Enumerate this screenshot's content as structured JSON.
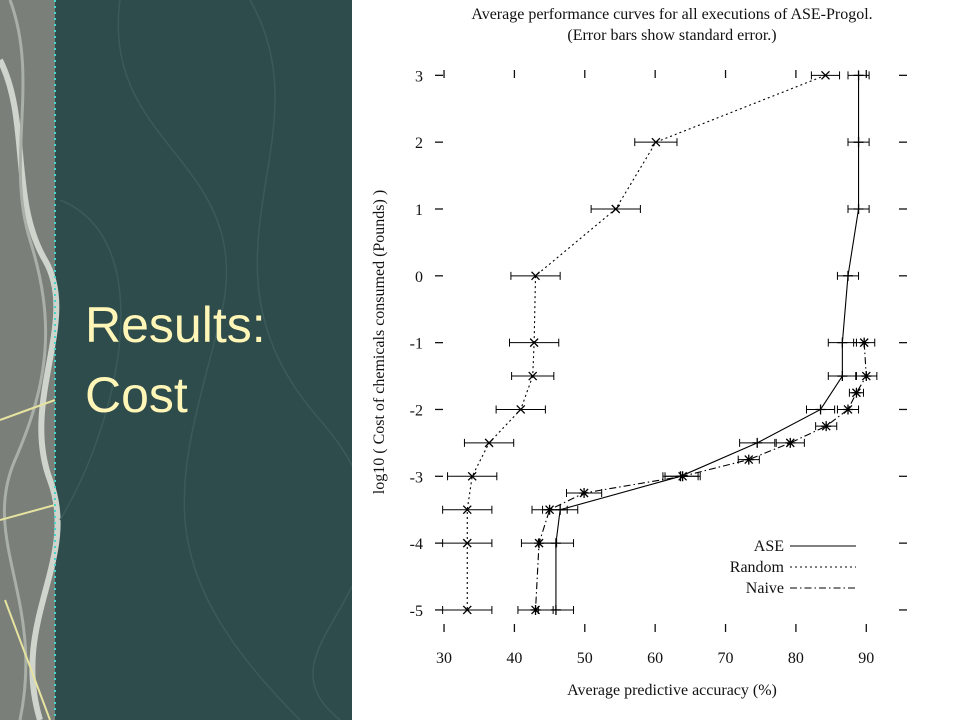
{
  "slide": {
    "title_lines": [
      "Results:",
      "Cost"
    ]
  },
  "chart_data": {
    "type": "line",
    "title": "Average performance curves for all executions of ASE-Progol.",
    "subtitle": "(Error bars show standard error.)",
    "x_label": "Average predictive accuracy (%)",
    "y_label": "log10 ( Cost of chemicals consumed (Pounds) )",
    "xlim": [
      29,
      95.5
    ],
    "ylim": [
      -5.3,
      3.05
    ],
    "xticks": [
      30,
      40,
      50,
      60,
      70,
      80,
      90
    ],
    "yticks": [
      3,
      2,
      1,
      0,
      -1,
      -2,
      -3,
      -4,
      -5
    ],
    "legend": "lower right",
    "series": [
      {
        "name": "ASE",
        "color": "#000000",
        "style": "solid",
        "marker": "plus",
        "x": [
          88.9,
          88.9,
          88.9,
          87.4,
          86.6,
          86.6,
          83.5,
          74.5,
          63.6,
          46.5,
          45.9,
          45.9
        ],
        "y": [
          3,
          2,
          1,
          0,
          -1,
          -1.5,
          -2,
          -2.5,
          -3,
          -3.5,
          -4,
          -5
        ],
        "errors": [
          1.5,
          1.5,
          1.5,
          1.5,
          2,
          2,
          2,
          2.5,
          2.5,
          2.5,
          2.5,
          2.5
        ]
      },
      {
        "name": "Random",
        "color": "#000000",
        "style": "dotted",
        "marker": "cross",
        "x": [
          84.2,
          60.1,
          54.4,
          43.0,
          42.8,
          42.6,
          40.9,
          36.4,
          34.0,
          33.3,
          33.3,
          33.3
        ],
        "y": [
          3,
          2,
          1,
          0,
          -1,
          -1.5,
          -2,
          -2.5,
          -3,
          -3.5,
          -4,
          -5
        ],
        "errors": [
          2,
          3,
          3.5,
          3.5,
          3.5,
          3,
          3.5,
          3.5,
          3.5,
          3.5,
          3.5,
          3.5
        ]
      },
      {
        "name": "Naive",
        "color": "#000000",
        "style": "dashdot",
        "marker": "star",
        "x": [
          89.7,
          90.0,
          88.6,
          87.4,
          84.3,
          79.2,
          73.3,
          63.9,
          49.9,
          45.0,
          43.5,
          43.0
        ],
        "y": [
          -1,
          -1.5,
          -1.75,
          -2,
          -2.25,
          -2.5,
          -2.75,
          -3,
          -3.25,
          -3.5,
          -4,
          -5
        ],
        "errors": [
          1.5,
          1.5,
          1,
          1.5,
          1.5,
          2,
          1.5,
          2.5,
          2.5,
          2.5,
          2.5,
          2.5
        ]
      }
    ]
  }
}
